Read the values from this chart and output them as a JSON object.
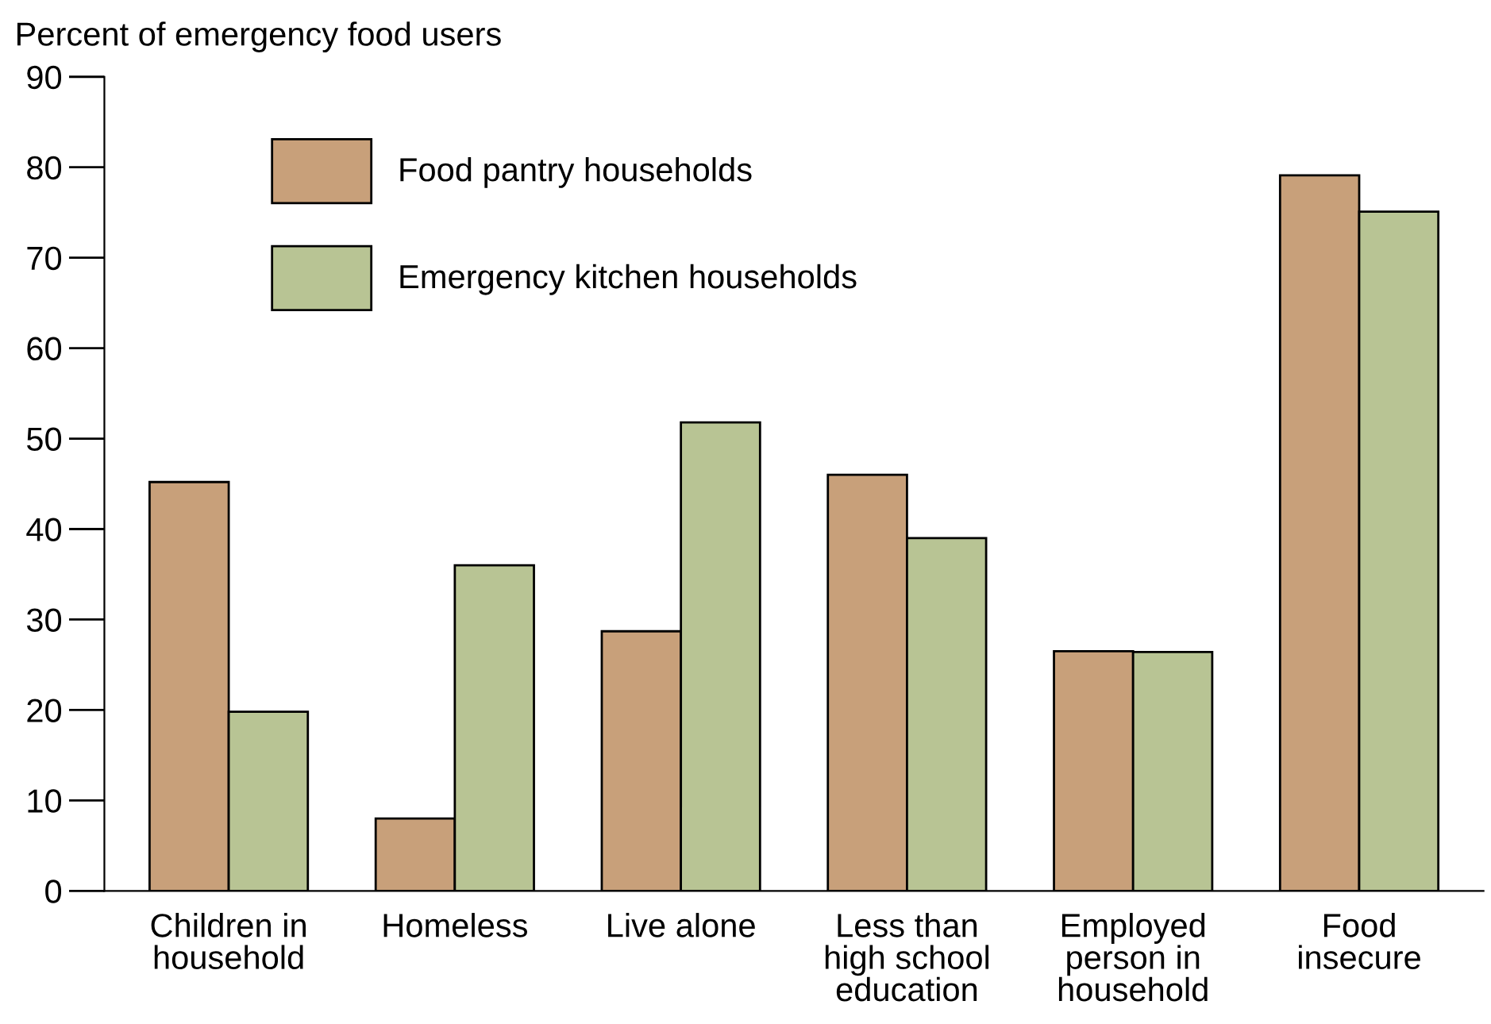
{
  "chart_data": {
    "type": "bar",
    "ylabel": "Percent of emergency food users",
    "categories": [
      "Children in\nhousehold",
      "Homeless",
      "Live alone",
      "Less than\nhigh school\neducation",
      "Employed\nperson in\nhousehold",
      "Food\ninsecure"
    ],
    "series": [
      {
        "name": "Food pantry households",
        "color": "#c8a07a",
        "values": [
          45.2,
          8,
          28.7,
          46,
          26.5,
          79.1
        ]
      },
      {
        "name": "Emergency kitchen households",
        "color": "#b8c494",
        "values": [
          19.8,
          36,
          51.8,
          39,
          26.4,
          75.1
        ]
      }
    ],
    "ylim": [
      0,
      90
    ],
    "yticks": [
      0,
      10,
      20,
      30,
      40,
      50,
      60,
      70,
      80,
      90
    ],
    "grid": false,
    "legend": "top left"
  }
}
